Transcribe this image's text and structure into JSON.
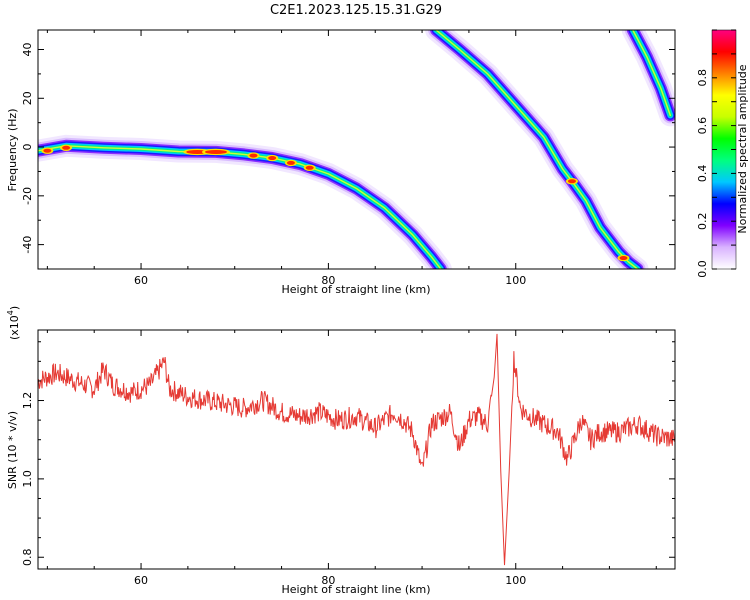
{
  "title": "C2E1.2023.125.15.31.G29",
  "chart_data": [
    {
      "type": "heatmap",
      "xlabel": "Height of straight line (km)",
      "ylabel": "Frequency (Hz)",
      "xlim": [
        49,
        117
      ],
      "ylim": [
        -50,
        48
      ],
      "x_ticks": [
        60,
        80,
        100
      ],
      "y_ticks": [
        -40,
        -20,
        0,
        20,
        40
      ],
      "colorbar": {
        "label": "Normalized spectral amplitude",
        "range": [
          0,
          1
        ],
        "ticks": [
          0.0,
          0.2,
          0.4,
          0.6,
          0.8
        ],
        "colors": [
          "#ffffff",
          "#d9b3ff",
          "#8000ff",
          "#0000ff",
          "#00c8ff",
          "#00ff80",
          "#00ff00",
          "#c8ff00",
          "#ffff00",
          "#ff8000",
          "#ff0000",
          "#ff0080"
        ]
      },
      "ridges": [
        {
          "name": "",
          "points": [
            [
              49,
              -1.5
            ],
            [
              52,
              0.5
            ],
            [
              56,
              -0.3
            ],
            [
              60,
              -0.8
            ],
            [
              64,
              -1.8
            ],
            [
              68,
              -2.0
            ],
            [
              71,
              -3.0
            ],
            [
              74,
              -4.5
            ],
            [
              77,
              -7.0
            ],
            [
              80,
              -11
            ],
            [
              83,
              -17
            ],
            [
              86,
              -25
            ],
            [
              89,
              -36
            ],
            [
              91,
              -45
            ],
            [
              92,
              -50
            ]
          ]
        },
        {
          "name": "",
          "points": [
            [
              91.5,
              48
            ],
            [
              94,
              40
            ],
            [
              97,
              30
            ],
            [
              100,
              17
            ],
            [
              103,
              4
            ],
            [
              105,
              -9
            ],
            [
              106,
              -14
            ],
            [
              107.5,
              -22
            ],
            [
              109,
              -33
            ],
            [
              111,
              -43
            ],
            [
              112,
              -47
            ],
            [
              113,
              -50
            ]
          ]
        },
        {
          "name": "",
          "points": [
            [
              112.5,
              48
            ],
            [
              114,
              37
            ],
            [
              115.5,
              24
            ],
            [
              116.5,
              13
            ]
          ]
        }
      ],
      "hotspots": [
        [
          50,
          -1.5
        ],
        [
          52,
          -0.3
        ],
        [
          66,
          -2.0
        ],
        [
          68,
          -2.0
        ],
        [
          72,
          -3.5
        ],
        [
          74,
          -4.5
        ],
        [
          76,
          -6.5
        ],
        [
          78,
          -8.5
        ],
        [
          106,
          -14
        ],
        [
          111.5,
          -45.5
        ]
      ]
    },
    {
      "type": "line",
      "xlabel": "Height of straight line (km)",
      "ylabel": "SNR (10 * v/v)",
      "y_multiplier": "(x10",
      "y_multiplier_exp": "4",
      "y_multiplier_close": ")",
      "xlim": [
        49,
        117
      ],
      "ylim": [
        0.77,
        1.38
      ],
      "x_ticks": [
        60,
        80,
        100
      ],
      "y_ticks": [
        0.8,
        1.0,
        1.2
      ],
      "line_color": "#e53a34",
      "series": [
        {
          "name": "",
          "x": [
            49,
            51,
            53,
            55,
            56,
            57,
            59,
            61,
            62.5,
            63,
            65,
            67,
            69,
            71,
            73,
            75,
            77,
            79,
            81,
            83,
            85,
            87,
            88,
            89,
            90,
            91,
            93,
            94,
            95,
            96,
            97,
            97.7,
            98.0,
            98.4,
            98.8,
            99.3,
            99.8,
            100.5,
            101.5,
            103,
            104.5,
            105.5,
            107,
            108,
            109,
            111,
            113,
            115,
            117
          ],
          "y": [
            1.25,
            1.27,
            1.25,
            1.23,
            1.28,
            1.24,
            1.22,
            1.24,
            1.3,
            1.23,
            1.21,
            1.2,
            1.19,
            1.18,
            1.2,
            1.17,
            1.16,
            1.17,
            1.15,
            1.16,
            1.13,
            1.17,
            1.15,
            1.12,
            1.02,
            1.14,
            1.17,
            1.08,
            1.15,
            1.16,
            1.14,
            1.26,
            1.37,
            1.02,
            0.78,
            1.02,
            1.31,
            1.18,
            1.16,
            1.14,
            1.12,
            1.05,
            1.15,
            1.1,
            1.12,
            1.12,
            1.14,
            1.11,
            1.1
          ]
        }
      ]
    }
  ]
}
